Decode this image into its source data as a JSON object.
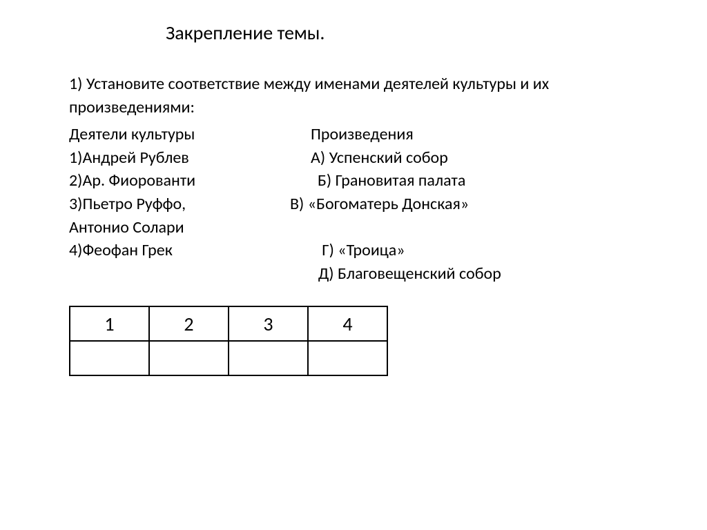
{
  "title": "Закрепление темы.",
  "instruction": "1) Установите соответствие между именами деятелей культуры и их произведениями:",
  "headers": {
    "left": "Деятели культуры",
    "right": "Произведения"
  },
  "rows": [
    {
      "left": "1)Андрей Рублев",
      "right": "А) Успенский собор"
    },
    {
      "left": "2)Ар. Фиорованти",
      "right": " Б) Грановитая палата"
    },
    {
      "left": "3)Пьетро Руффо,",
      "right": "В) «Богоматерь Донская»"
    },
    {
      "left": "Антонио Солари",
      "right": ""
    },
    {
      "left": "4)Феофан Грек",
      "right": "   Г) «Троица»"
    },
    {
      "left": "",
      "right": "  Д) Благовещенский собор"
    }
  ],
  "table": {
    "headers": [
      "1",
      "2",
      "3",
      "4"
    ],
    "answers": [
      "",
      "",
      "",
      ""
    ]
  },
  "colors": {
    "background": "#ffffff",
    "text": "#000000",
    "border": "#000000"
  },
  "font": {
    "family": "Calibri",
    "title_size": 28,
    "body_size": 24,
    "table_size": 28
  }
}
